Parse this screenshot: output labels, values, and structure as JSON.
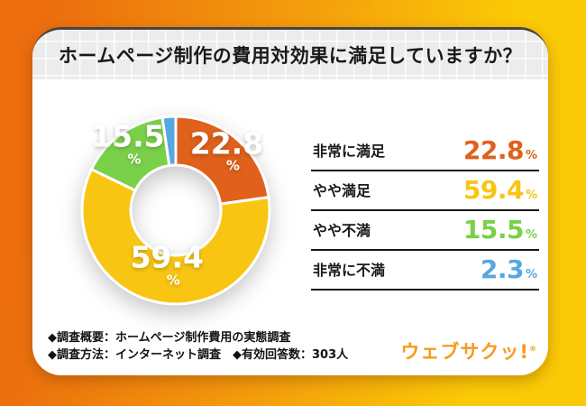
{
  "title": "ホームページ制作の費用対効果に満足していますか？",
  "chart_data": {
    "type": "pie",
    "subtype": "donut",
    "title": "ホームページ制作の費用対効果に満足していますか？",
    "categories": [
      "非常に満足",
      "やや満足",
      "やや不満",
      "非常に不満"
    ],
    "values": [
      22.8,
      59.4,
      15.5,
      2.3
    ],
    "unit": "%",
    "colors": [
      "#df611c",
      "#f8c513",
      "#7bd04a",
      "#57a7e0"
    ],
    "start_angle_deg": -90,
    "direction": "clockwise",
    "inner_radius_ratio": 0.48,
    "slice_labels_shown": [
      "22.8",
      "59.4",
      "15.5"
    ],
    "legend_position": "right"
  },
  "legend": {
    "rows": [
      {
        "label": "非常に満足",
        "value": "22.8",
        "unit": "%"
      },
      {
        "label": "やや満足",
        "value": "59.4",
        "unit": "%"
      },
      {
        "label": "やや不満",
        "value": "15.5",
        "unit": "%"
      },
      {
        "label": "非常に不満",
        "value": "2.3",
        "unit": "%"
      }
    ]
  },
  "notes": {
    "line1": "◆調査概要：ホームページ制作費用の実態調査",
    "line2": "◆調査方法：インターネット調査　◆有効回答数：303人"
  },
  "brand": {
    "name": "ウェブサクッ!",
    "mark": "®",
    "color": "#f59b1e"
  },
  "colors": {
    "background_left": "#ec6e0e",
    "background_right": "#fbca06",
    "card": "#ffffff",
    "header_bar": "#ececec",
    "text": "#1a1a1a"
  }
}
